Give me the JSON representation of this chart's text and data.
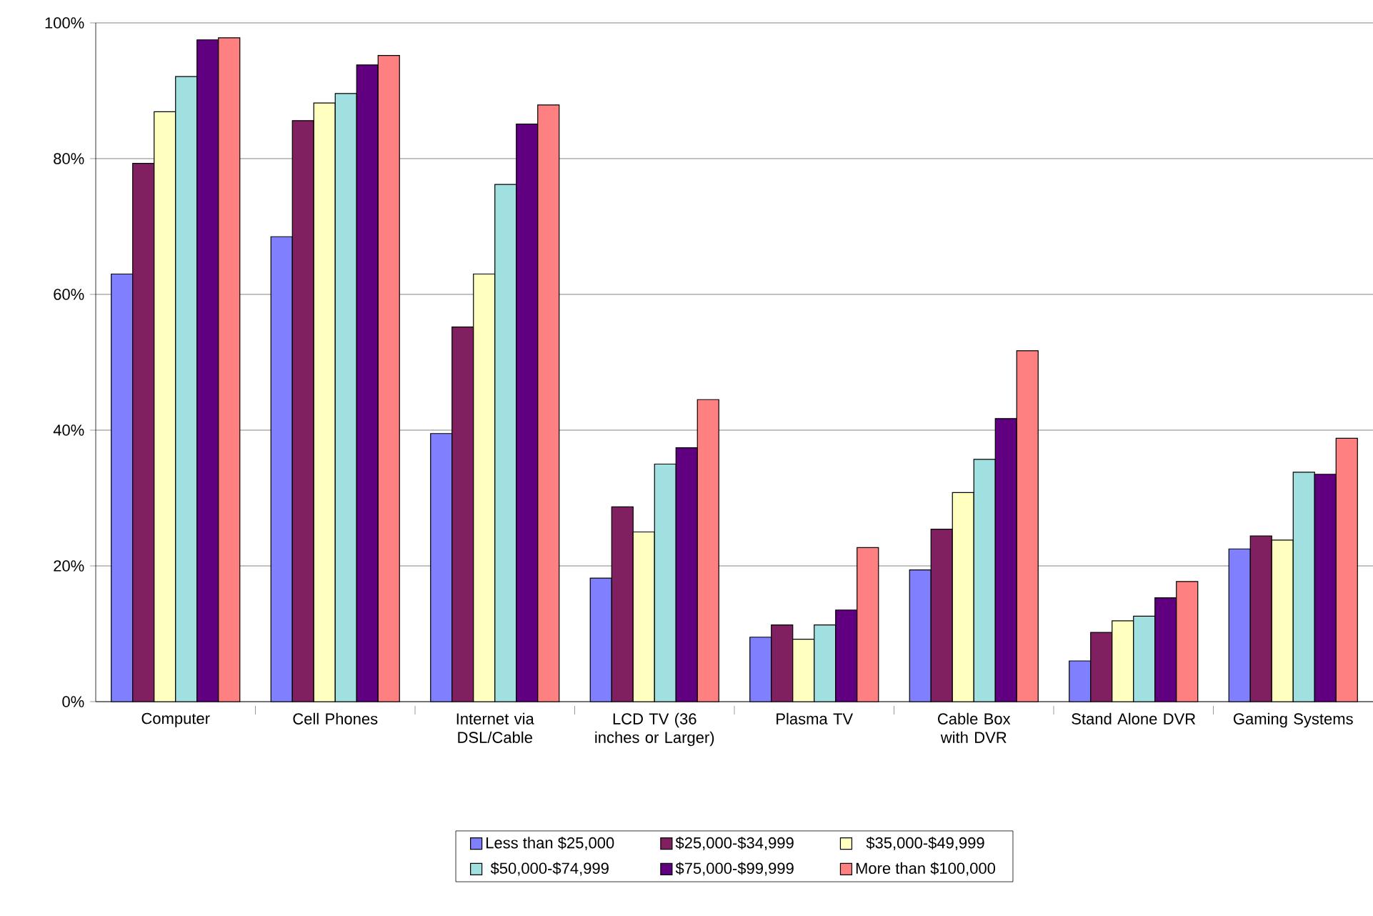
{
  "chart_data": {
    "type": "bar",
    "categories": [
      "Computer",
      "Cell Phones",
      "Internet via DSL/Cable",
      "LCD TV (36 inches or Larger)",
      "Plasma TV",
      "Cable Box with DVR",
      "Stand Alone DVR",
      "Gaming Systems"
    ],
    "series": [
      {
        "name": "Less than $25,000",
        "color": "#8080ff",
        "values": [
          63.0,
          68.5,
          39.5,
          18.2,
          9.5,
          19.4,
          6.0,
          22.5
        ]
      },
      {
        "name": "$25,000-$34,999",
        "color": "#802060",
        "values": [
          79.3,
          85.6,
          55.2,
          28.7,
          11.3,
          25.4,
          10.2,
          24.4
        ]
      },
      {
        "name": "$35,000-$49,999",
        "color": "#ffffc0",
        "values": [
          86.9,
          88.2,
          63.0,
          25.0,
          9.2,
          30.8,
          11.9,
          23.8
        ]
      },
      {
        "name": "$50,000-$74,999",
        "color": "#a0e0e0",
        "values": [
          92.1,
          89.6,
          76.2,
          35.0,
          11.3,
          35.7,
          12.6,
          33.8
        ]
      },
      {
        "name": "$75,000-$99,999",
        "color": "#600080",
        "values": [
          97.5,
          93.8,
          85.1,
          37.4,
          13.5,
          41.7,
          15.3,
          33.5
        ]
      },
      {
        "name": "More than $100,000",
        "color": "#ff8080",
        "values": [
          97.8,
          95.2,
          87.9,
          44.5,
          22.7,
          51.7,
          17.7,
          38.8
        ]
      }
    ],
    "ylim": [
      0,
      100
    ],
    "yticks": [
      {
        "value": 0,
        "label": "0%"
      },
      {
        "value": 20,
        "label": "20%"
      },
      {
        "value": 40,
        "label": "40%"
      },
      {
        "value": 60,
        "label": "60%"
      },
      {
        "value": 80,
        "label": "80%"
      },
      {
        "value": 100,
        "label": "100%"
      }
    ],
    "grid": "y",
    "legend": "bottom"
  }
}
